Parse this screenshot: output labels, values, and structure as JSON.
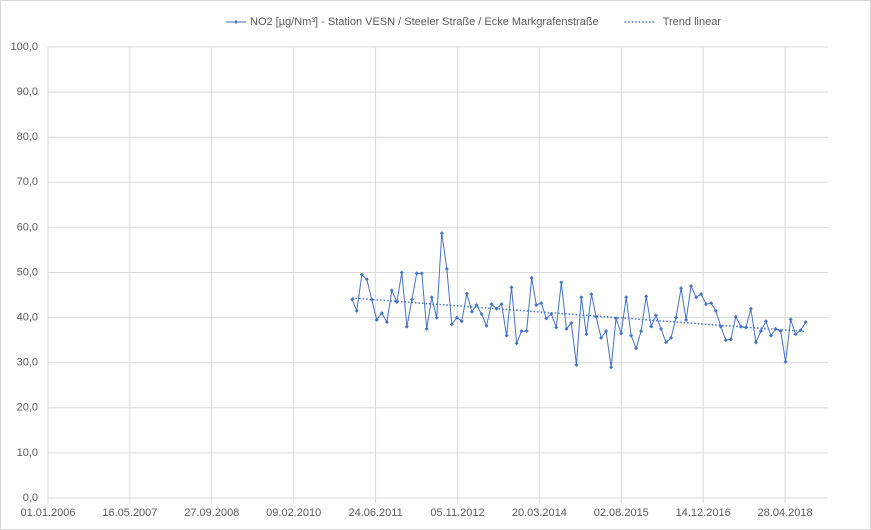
{
  "chart_data": {
    "type": "line",
    "x": [
      "2011-02",
      "2011-03",
      "2011-04",
      "2011-05",
      "2011-06",
      "2011-07",
      "2011-08",
      "2011-09",
      "2011-10",
      "2011-11",
      "2011-12",
      "2012-01",
      "2012-02",
      "2012-03",
      "2012-04",
      "2012-05",
      "2012-06",
      "2012-07",
      "2012-08",
      "2012-09",
      "2012-10",
      "2012-11",
      "2012-12",
      "2013-01",
      "2013-02",
      "2013-03",
      "2013-04",
      "2013-05",
      "2013-06",
      "2013-07",
      "2013-08",
      "2013-09",
      "2013-10",
      "2013-11",
      "2013-12",
      "2014-01",
      "2014-02",
      "2014-03",
      "2014-04",
      "2014-05",
      "2014-06",
      "2014-07",
      "2014-08",
      "2014-09",
      "2014-10",
      "2014-11",
      "2014-12",
      "2015-01",
      "2015-02",
      "2015-03",
      "2015-04",
      "2015-05",
      "2015-06",
      "2015-07",
      "2015-08",
      "2015-09",
      "2015-10",
      "2015-11",
      "2015-12",
      "2016-01",
      "2016-02",
      "2016-03",
      "2016-04",
      "2016-05",
      "2016-06",
      "2016-07",
      "2016-08",
      "2016-09",
      "2016-10",
      "2016-11",
      "2016-12",
      "2017-01",
      "2017-02",
      "2017-03",
      "2017-04",
      "2017-05",
      "2017-06",
      "2017-07",
      "2017-08",
      "2017-09",
      "2017-10",
      "2017-11",
      "2017-12",
      "2018-01",
      "2018-02",
      "2018-03",
      "2018-04",
      "2018-05",
      "2018-06",
      "2018-07",
      "2018-08",
      "2018-09"
    ],
    "series": [
      {
        "name": "NO2 [µg/Nm³] - Station VESN / Steeler Straße / Ecke Markgrafenstraße",
        "color": "#4472c4",
        "values": [
          44.0,
          41.5,
          49.5,
          48.5,
          44.0,
          39.5,
          41.0,
          39.0,
          46.0,
          43.5,
          50.0,
          38.0,
          44.0,
          49.8,
          49.8,
          37.5,
          44.5,
          40.0,
          58.7,
          50.8,
          38.5,
          40.0,
          39.2,
          45.3,
          41.3,
          42.8,
          40.8,
          38.2,
          43.0,
          42.0,
          43.0,
          36.0,
          46.7,
          34.3,
          37.0,
          37.0,
          48.8,
          42.8,
          43.2,
          39.8,
          40.8,
          37.8,
          47.8,
          37.5,
          38.8,
          29.5,
          44.5,
          36.3,
          45.2,
          40.2,
          35.5,
          37.0,
          29.0,
          39.8,
          36.5,
          44.5,
          36.0,
          33.2,
          37.0,
          44.7,
          38.0,
          40.5,
          37.5,
          34.5,
          35.5,
          40.0,
          46.5,
          39.5,
          47.0,
          44.5,
          45.2,
          43.0,
          43.2,
          41.5,
          38.0,
          35.0,
          35.2,
          40.2,
          38.0,
          37.8,
          42.0,
          34.5,
          37.0,
          39.2,
          36.0,
          37.5,
          37.0,
          30.2,
          39.6,
          36.3,
          37.2,
          39.0
        ]
      }
    ],
    "trendline": {
      "name": "Trend linear",
      "color": "#4472c4"
    },
    "xlim": [
      "2006-01-01",
      "2019-01-15"
    ],
    "xticks": [
      {
        "value": "2006-01-01",
        "label": "01.01.2006"
      },
      {
        "value": "2007-05-16",
        "label": "16.05.2007"
      },
      {
        "value": "2008-09-27",
        "label": "27.09.2008"
      },
      {
        "value": "2010-02-09",
        "label": "09.02.2010"
      },
      {
        "value": "2011-06-24",
        "label": "24.06.2011"
      },
      {
        "value": "2012-11-05",
        "label": "05.11.2012"
      },
      {
        "value": "2014-03-20",
        "label": "20.03.2014"
      },
      {
        "value": "2015-08-02",
        "label": "02.08.2015"
      },
      {
        "value": "2016-12-14",
        "label": "14.12.2016"
      },
      {
        "value": "2018-04-28",
        "label": "28.04.2018"
      }
    ],
    "ylim": [
      0,
      100
    ],
    "yticks": [
      {
        "value": 0,
        "label": "0,0"
      },
      {
        "value": 10,
        "label": "10,0"
      },
      {
        "value": 20,
        "label": "20,0"
      },
      {
        "value": 30,
        "label": "30,0"
      },
      {
        "value": 40,
        "label": "40,0"
      },
      {
        "value": 50,
        "label": "50,0"
      },
      {
        "value": 60,
        "label": "60,0"
      },
      {
        "value": 70,
        "label": "70,0"
      },
      {
        "value": 80,
        "label": "80,0"
      },
      {
        "value": 90,
        "label": "90,0"
      },
      {
        "value": 100,
        "label": "100,0"
      }
    ],
    "grid": true,
    "legend": "top"
  }
}
